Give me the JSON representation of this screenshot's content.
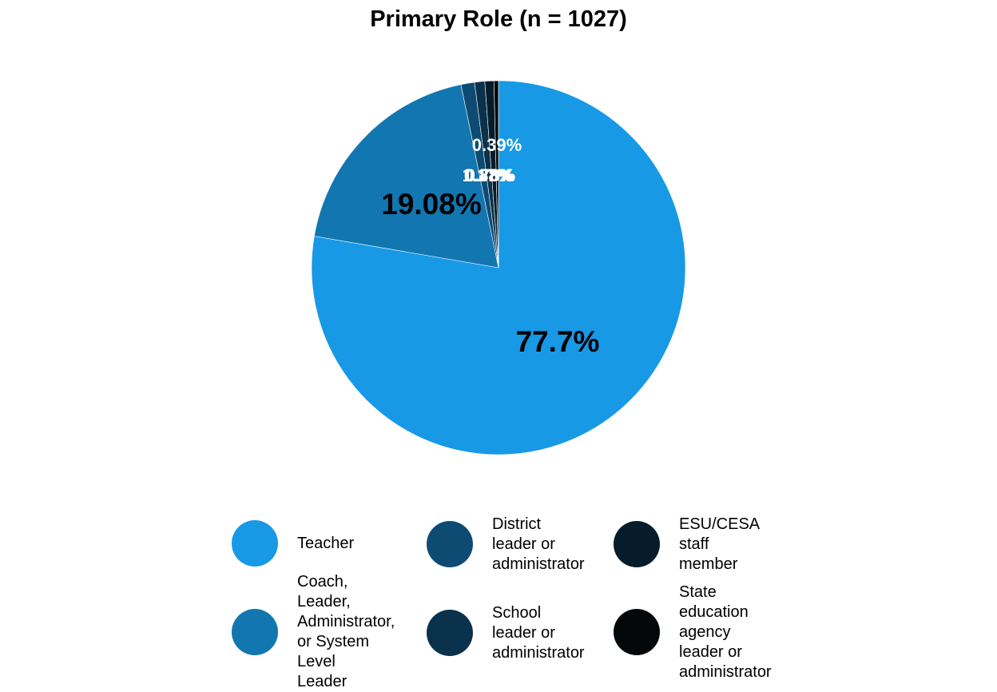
{
  "chart_data": {
    "type": "pie",
    "title": "Primary Role (n = 1027)",
    "slices": [
      {
        "name": "Teacher",
        "value": 77.7,
        "label": "77.7%",
        "color": "#1799E6"
      },
      {
        "name": "Coach, Leader, Administrator, or System Level Leader",
        "value": 19.08,
        "label": "19.08%",
        "color": "#1276B1"
      },
      {
        "name": "District leader or administrator",
        "value": 1.17,
        "label": "1.17%",
        "color": "#0D4B72"
      },
      {
        "name": "School leader or administrator",
        "value": 0.88,
        "label": "0.88%",
        "color": "#0A324C"
      },
      {
        "name": "ESU/CESA staff member",
        "value": 0.78,
        "label": "0.78%",
        "color": "#061C2A"
      },
      {
        "name": "State education agency leader or administrator",
        "value": 0.39,
        "label": "0.39%",
        "color": "#040708"
      }
    ],
    "legend_position": "bottom",
    "legend": [
      [
        "Teacher"
      ],
      [
        "Coach,",
        "Leader,",
        "Administrator,",
        "or System",
        "Level",
        "Leader"
      ],
      [
        "District",
        "leader or",
        "administrator"
      ],
      [
        "School",
        "leader or",
        "administrator"
      ],
      [
        "ESU/CESA",
        "staff",
        "member"
      ],
      [
        "State",
        "education",
        "agency",
        "leader or",
        "administrator"
      ]
    ]
  }
}
